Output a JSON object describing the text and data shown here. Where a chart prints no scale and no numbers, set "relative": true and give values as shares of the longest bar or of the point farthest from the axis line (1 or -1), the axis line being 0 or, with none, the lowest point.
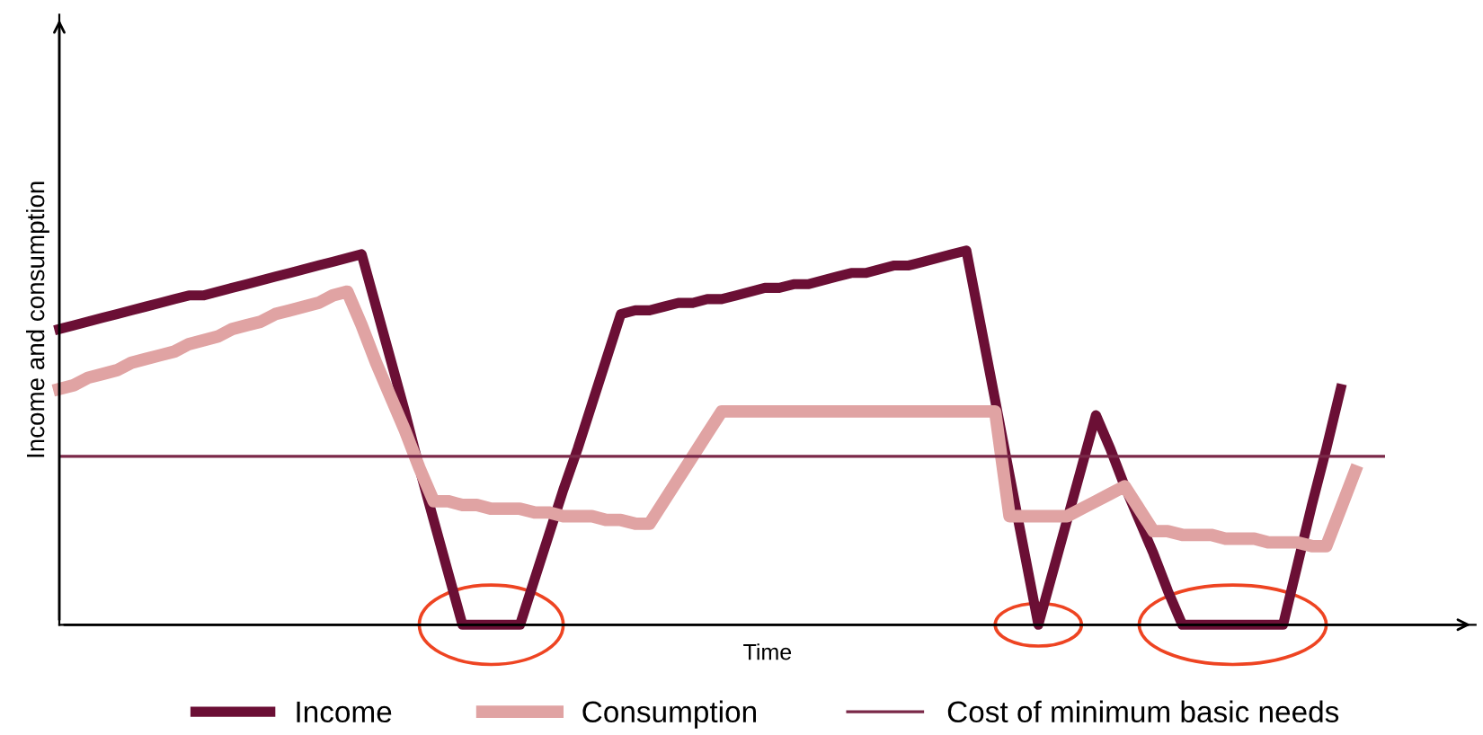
{
  "chart_data": {
    "type": "line",
    "relative": true,
    "xlabel": "Time",
    "ylabel": "Income and consumption",
    "legend": "bottom",
    "categories": [
      null,
      null,
      null,
      null,
      null,
      null,
      null,
      null,
      null,
      null,
      null,
      null,
      null,
      null,
      null,
      null,
      null,
      null,
      null,
      null,
      null,
      null,
      null,
      null,
      null,
      null,
      null,
      null,
      null,
      null,
      null,
      null,
      null,
      null,
      null,
      null,
      null,
      null,
      null,
      null,
      null,
      null,
      null,
      null,
      null,
      null,
      null,
      null,
      null,
      null,
      null,
      null,
      null,
      null,
      null,
      null,
      null,
      null,
      null,
      null,
      null,
      null,
      null,
      null,
      null,
      null,
      null,
      null,
      null,
      null,
      null,
      null,
      null,
      null,
      null,
      null,
      null,
      null,
      null,
      null,
      null,
      null,
      null,
      null,
      null,
      null,
      null,
      null,
      null,
      null,
      null
    ],
    "series": [
      {
        "name": "Income",
        "color": "#6b0f35",
        "values": [
          0.79,
          0.8,
          0.81,
          0.82,
          0.83,
          0.84,
          0.85,
          0.86,
          0.87,
          0.88,
          0.88,
          0.89,
          0.9,
          0.91,
          0.92,
          0.93,
          0.94,
          0.95,
          0.96,
          0.97,
          0.98,
          0.99,
          0.85,
          0.71,
          0.57,
          0.42,
          0.28,
          0.14,
          0,
          0,
          0,
          0,
          0,
          0.12,
          0.24,
          0.36,
          0.47,
          0.59,
          0.71,
          0.83,
          0.84,
          0.84,
          0.85,
          0.86,
          0.86,
          0.87,
          0.87,
          0.88,
          0.89,
          0.9,
          0.9,
          0.91,
          0.91,
          0.92,
          0.93,
          0.94,
          0.94,
          0.95,
          0.96,
          0.96,
          0.97,
          0.98,
          0.99,
          1.0,
          0.8,
          0.6,
          0.4,
          0.2,
          0,
          0.14,
          0.28,
          0.42,
          0.56,
          0.47,
          0.37,
          0.28,
          0.19,
          0.09,
          0,
          0,
          0,
          0,
          0,
          0,
          0,
          0,
          0.16,
          0.32,
          0.47,
          0.63,
          null
        ]
      },
      {
        "name": "Consumption",
        "color": "#e0a3a3",
        "values": [
          0.63,
          0.64,
          0.66,
          0.67,
          0.68,
          0.7,
          0.71,
          0.72,
          0.73,
          0.75,
          0.76,
          0.77,
          0.79,
          0.8,
          0.81,
          0.83,
          0.84,
          0.85,
          0.86,
          0.88,
          0.89,
          0.8,
          0.7,
          0.61,
          0.52,
          0.42,
          0.33,
          0.33,
          0.32,
          0.32,
          0.31,
          0.31,
          0.31,
          0.3,
          0.3,
          0.29,
          0.29,
          0.29,
          0.28,
          0.28,
          0.27,
          0.27,
          0.33,
          0.39,
          0.45,
          0.51,
          0.57,
          0.57,
          0.57,
          0.57,
          0.57,
          0.57,
          0.57,
          0.57,
          0.57,
          0.57,
          0.57,
          0.57,
          0.57,
          0.57,
          0.57,
          0.57,
          0.57,
          0.57,
          0.57,
          0.57,
          0.29,
          0.29,
          0.29,
          0.29,
          0.29,
          0.31,
          0.33,
          0.35,
          0.37,
          0.31,
          0.25,
          0.25,
          0.24,
          0.24,
          0.24,
          0.23,
          0.23,
          0.23,
          0.22,
          0.22,
          0.22,
          0.21,
          0.21,
          0.31,
          0.41
        ]
      }
    ],
    "ref_lines": [
      {
        "axis": "y",
        "value": 0.45,
        "label": "Cost of minimum basic needs",
        "color": "#7a2848"
      }
    ]
  }
}
